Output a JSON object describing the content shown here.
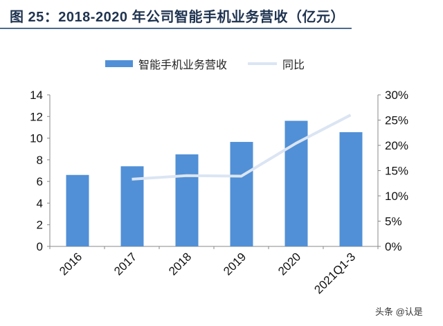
{
  "title": "图 25：2018-2020 年公司智能手机业务营收（亿元）",
  "watermark": "头条 @认是",
  "chart_data": {
    "type": "bar+line",
    "title": "图 25：2018-2020 年公司智能手机业务营收（亿元）",
    "categories": [
      "2016",
      "2017",
      "2018",
      "2019",
      "2020",
      "2021Q1-3"
    ],
    "series": [
      {
        "name": "智能手机业务营收",
        "type": "bar",
        "axis": "left",
        "color": "#5190d6",
        "values": [
          6.6,
          7.4,
          8.5,
          9.65,
          11.6,
          10.55
        ]
      },
      {
        "name": "同比",
        "type": "line",
        "axis": "right",
        "color": "#dbe5f3",
        "values": [
          null,
          13.3,
          14.0,
          13.9,
          20.4,
          26.0
        ]
      }
    ],
    "left_axis": {
      "ylim": [
        0,
        14
      ],
      "ticks": [
        "0",
        "2",
        "4",
        "6",
        "8",
        "10",
        "12",
        "14"
      ]
    },
    "right_axis": {
      "ylim": [
        0,
        30
      ],
      "ticks": [
        "0%",
        "5%",
        "10%",
        "15%",
        "20%",
        "25%",
        "30%"
      ]
    },
    "legend_placement": "top",
    "grid": false
  }
}
